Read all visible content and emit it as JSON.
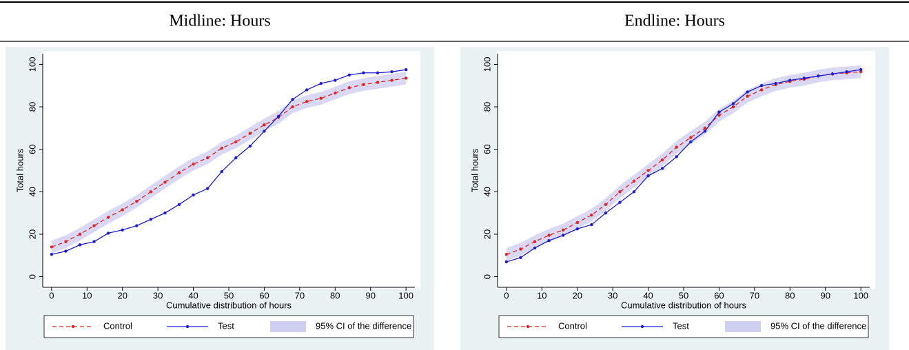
{
  "chart_data": [
    {
      "type": "line",
      "title": "Midline: Hours",
      "xlabel": "Cumulative distribution of hours",
      "ylabel": "Total hours",
      "x": [
        0,
        4,
        8,
        12,
        16,
        20,
        24,
        28,
        32,
        36,
        40,
        44,
        48,
        52,
        56,
        60,
        64,
        68,
        72,
        76,
        80,
        84,
        88,
        92,
        96,
        100
      ],
      "series": [
        {
          "name": "Control",
          "color": "#e8231f",
          "dashed": true,
          "values": [
            14,
            16.5,
            20,
            24,
            28,
            31.5,
            35.5,
            40,
            44.5,
            49,
            53,
            56,
            60.5,
            63.5,
            67.5,
            71.5,
            75,
            80,
            82.5,
            84,
            86.5,
            89,
            90.5,
            91.5,
            92.5,
            93.5
          ]
        },
        {
          "name": "Test",
          "color": "#1c1cd8",
          "values": [
            10.5,
            12,
            15,
            16.5,
            20.5,
            22,
            24,
            27,
            30,
            34,
            38.5,
            41.5,
            49.5,
            56,
            61.5,
            68.5,
            75.5,
            83.5,
            88,
            91,
            92.5,
            95,
            96,
            96,
            96.5,
            97.5
          ]
        },
        {
          "name": "95% CI of the difference",
          "color": "#cfcff2",
          "band": true,
          "lower": [
            11,
            13.5,
            17,
            21,
            25,
            28.5,
            32.5,
            37,
            41.5,
            46,
            50,
            53,
            57.5,
            60.5,
            64.5,
            68.5,
            72,
            77,
            79.5,
            81,
            83.5,
            86,
            87.5,
            88.5,
            89.5,
            90.5
          ],
          "upper": [
            17,
            19.5,
            23,
            27,
            31,
            34.5,
            38.5,
            43,
            47.5,
            52,
            56,
            59,
            63.5,
            66.5,
            70.5,
            74.5,
            78,
            83,
            85.5,
            87,
            89.5,
            92,
            93.5,
            94.5,
            95.5,
            96.5
          ]
        }
      ],
      "xlim": [
        -2.5,
        102.5
      ],
      "xticks": [
        0,
        10,
        20,
        30,
        40,
        50,
        60,
        70,
        80,
        90,
        100
      ],
      "ylim": [
        -5,
        105
      ],
      "yticks": [
        0,
        20,
        40,
        60,
        80,
        100
      ],
      "grid": false
    },
    {
      "type": "line",
      "title": "Endline: Hours",
      "xlabel": "Cumulative distribution of hours",
      "ylabel": "Total hours",
      "x": [
        0,
        4,
        8,
        12,
        16,
        20,
        24,
        28,
        32,
        36,
        40,
        44,
        48,
        52,
        56,
        60,
        64,
        68,
        72,
        76,
        80,
        84,
        88,
        92,
        96,
        100
      ],
      "series": [
        {
          "name": "Control",
          "color": "#e8231f",
          "dashed": true,
          "values": [
            10.5,
            13,
            16.5,
            19.5,
            22,
            25.5,
            29,
            34,
            40,
            45,
            50,
            55,
            61,
            65.5,
            70,
            76,
            80,
            85,
            88,
            90.5,
            92,
            93,
            94.5,
            95.5,
            96,
            96.5
          ]
        },
        {
          "name": "Test",
          "color": "#1c1cd8",
          "values": [
            7,
            9,
            13.5,
            17,
            19.5,
            22.5,
            24.5,
            30,
            35,
            40,
            47.5,
            51,
            56.5,
            63.5,
            68.5,
            77.5,
            81.5,
            87,
            90,
            91,
            92.5,
            93.5,
            94.5,
            95.5,
            96.5,
            97.5
          ]
        },
        {
          "name": "95% CI of the difference",
          "color": "#cfcff2",
          "band": true,
          "lower": [
            7.5,
            10,
            13.5,
            16.5,
            19,
            22.5,
            26,
            31,
            37,
            42,
            47,
            52,
            58,
            62.5,
            67,
            73,
            77,
            82,
            85,
            87.5,
            89,
            90,
            91.5,
            92.5,
            93,
            93.5
          ],
          "upper": [
            13.5,
            16,
            19.5,
            22.5,
            25,
            28.5,
            32,
            37,
            43,
            48,
            53,
            58,
            64,
            68.5,
            73,
            79,
            83,
            88,
            91,
            93.5,
            95,
            96,
            97.5,
            98.5,
            99,
            99.5
          ]
        }
      ],
      "xlim": [
        -2.5,
        102.5
      ],
      "xticks": [
        0,
        10,
        20,
        30,
        40,
        50,
        60,
        70,
        80,
        90,
        100
      ],
      "ylim": [
        -5,
        105
      ],
      "yticks": [
        0,
        20,
        40,
        60,
        80,
        100
      ],
      "grid": false
    }
  ]
}
